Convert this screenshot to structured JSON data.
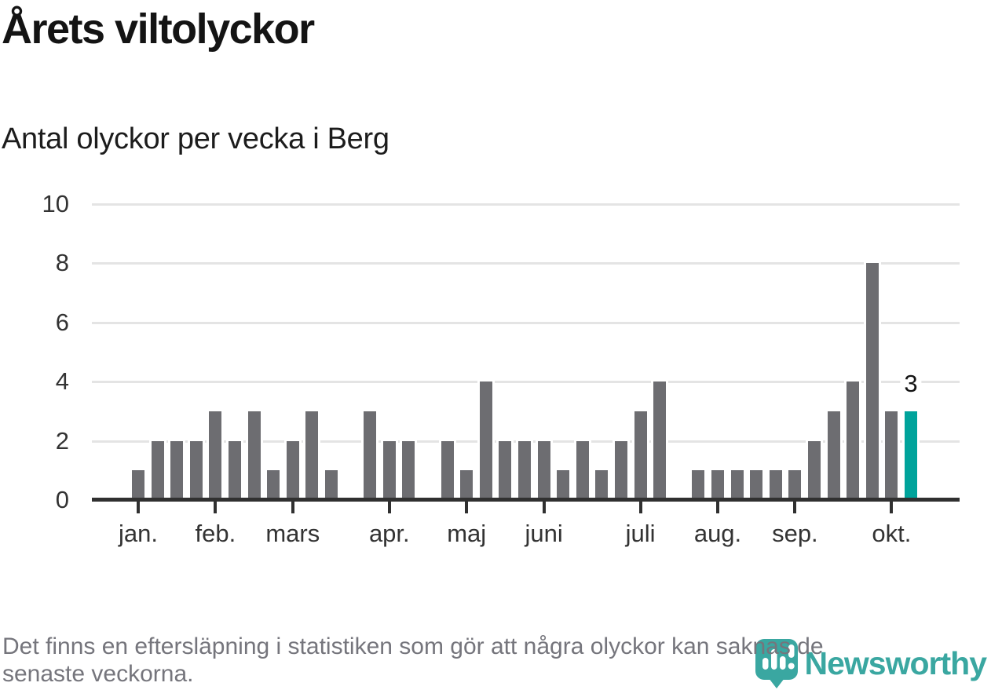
{
  "header": {
    "title": "Årets viltolyckor",
    "subtitle": "Antal olyckor per vecka i Berg"
  },
  "chart_data": {
    "type": "bar",
    "title": "Årets viltolyckor",
    "subtitle": "Antal olyckor per vecka i Berg",
    "x_unit": "vecka",
    "series": [
      {
        "name": "Antal olyckor per vecka",
        "values": [
          1,
          2,
          2,
          2,
          3,
          2,
          3,
          1,
          2,
          3,
          1,
          0,
          3,
          2,
          2,
          0,
          2,
          1,
          4,
          2,
          2,
          2,
          1,
          2,
          1,
          2,
          3,
          4,
          0,
          1,
          1,
          1,
          1,
          1,
          1,
          2,
          3,
          4,
          8,
          3,
          3
        ]
      }
    ],
    "month_ticks": [
      {
        "label": "jan.",
        "bar_index": 0
      },
      {
        "label": "feb.",
        "bar_index": 4
      },
      {
        "label": "mars",
        "bar_index": 8
      },
      {
        "label": "apr.",
        "bar_index": 13
      },
      {
        "label": "maj",
        "bar_index": 17
      },
      {
        "label": "juni",
        "bar_index": 21
      },
      {
        "label": "juli",
        "bar_index": 26
      },
      {
        "label": "aug.",
        "bar_index": 30
      },
      {
        "label": "sep.",
        "bar_index": 34
      },
      {
        "label": "okt.",
        "bar_index": 39
      }
    ],
    "y_axis": {
      "ticks": [
        0,
        2,
        4,
        6,
        8,
        10
      ],
      "range": [
        0,
        10
      ],
      "grid": true
    },
    "highlight": {
      "bar_index": 40,
      "value": 3,
      "label": "3",
      "color": "#00a39b"
    },
    "bar_color": "#6d6d71",
    "grid_color": "#e4e4e4",
    "axis_color": "#303030",
    "legend_position": "none"
  },
  "footer": {
    "lines": [
      "Det finns en eftersläpning i statistiken som gör att några olyckor kan saknas de",
      "senaste veckorna."
    ]
  },
  "logo": {
    "brand": "Newsworthy",
    "color": "#3aa7a1",
    "icon": "newsworthy-pin-barchart-icon"
  }
}
